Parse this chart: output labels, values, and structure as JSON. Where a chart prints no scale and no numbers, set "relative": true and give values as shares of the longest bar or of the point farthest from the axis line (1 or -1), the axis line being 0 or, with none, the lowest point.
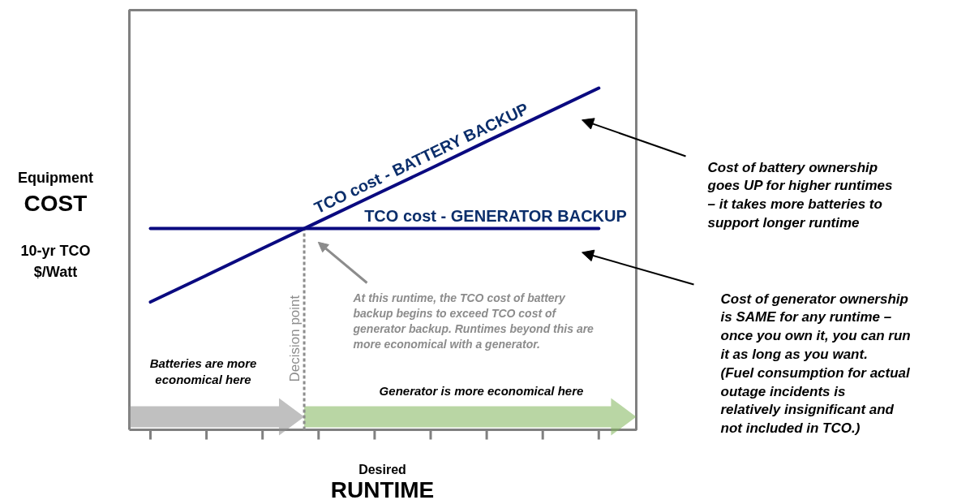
{
  "chart_data": {
    "type": "line",
    "relative": true,
    "xlabel": "Desired\nRUNTIME",
    "ylabel": "Equipment\nCOST\n\n10-yr TCO\n$/Watt",
    "categories": [
      null,
      null,
      null,
      null,
      null,
      null,
      null,
      null,
      null
    ],
    "series": [
      {
        "name": "TCO cost - BATTERY BACKUP",
        "color": "#0a0a80",
        "values": [
          0.374,
          0.452,
          0.531,
          0.609,
          0.687,
          0.765,
          0.844,
          0.922,
          1.0
        ]
      },
      {
        "name": "TCO cost - GENERATOR BACKUP",
        "color": "#0a0a80",
        "values": [
          0.589,
          0.589,
          0.589,
          0.589,
          0.589,
          0.589,
          0.589,
          0.589,
          0.589
        ]
      }
    ],
    "annotations": [
      "Decision point",
      "Batteries are more economical here",
      "Generator is more economical here",
      "At this runtime, the TCO cost of battery backup begins to exceed TCO cost of generator backup.  Runtimes beyond this are more economical with a generator.",
      "Cost of battery ownership goes UP for higher runtimes – it takes more batteries to support longer runtime",
      "Cost of generator ownership is SAME for any runtime – once you own it, you can run it as long as you want.  (Fuel consumption for actual outage incidents is relatively insignificant and not included in TCO.)"
    ]
  }
}
